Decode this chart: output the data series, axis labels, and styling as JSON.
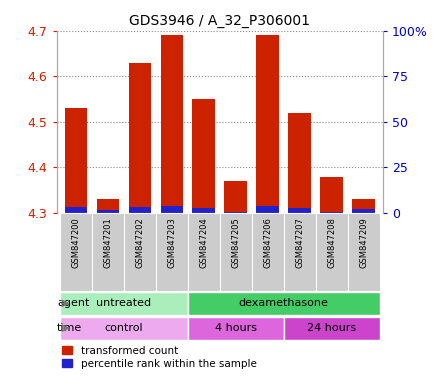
{
  "title": "GDS3946 / A_32_P306001",
  "samples": [
    "GSM847200",
    "GSM847201",
    "GSM847202",
    "GSM847203",
    "GSM847204",
    "GSM847205",
    "GSM847206",
    "GSM847207",
    "GSM847208",
    "GSM847209"
  ],
  "bar_tops": [
    4.53,
    4.33,
    4.63,
    4.69,
    4.55,
    4.37,
    4.69,
    4.52,
    4.38,
    4.33
  ],
  "bar_bottoms": [
    4.3,
    4.3,
    4.3,
    4.3,
    4.3,
    4.3,
    4.3,
    4.3,
    4.3,
    4.3
  ],
  "blue_tops": [
    4.312,
    4.3065,
    4.314,
    4.3155,
    4.3115,
    4.303,
    4.3155,
    4.3115,
    4.303,
    4.308
  ],
  "blue_bottoms": [
    4.3,
    4.3,
    4.3,
    4.3,
    4.3,
    4.3,
    4.3,
    4.3,
    4.3,
    4.3
  ],
  "ylim_left": [
    4.3,
    4.7
  ],
  "ylim_right": [
    0,
    100
  ],
  "yticks_left": [
    4.3,
    4.4,
    4.5,
    4.6,
    4.7
  ],
  "yticks_right": [
    0,
    25,
    50,
    75,
    100
  ],
  "ytick_labels_right": [
    "0",
    "25",
    "50",
    "75",
    "100%"
  ],
  "bar_color": "#cc2200",
  "blue_color": "#2222cc",
  "agent_groups": [
    {
      "label": "untreated",
      "start": 0,
      "end": 4,
      "color": "#aaeebb"
    },
    {
      "label": "dexamethasone",
      "start": 4,
      "end": 10,
      "color": "#44cc66"
    }
  ],
  "time_groups": [
    {
      "label": "control",
      "start": 0,
      "end": 4,
      "color": "#eeaaee"
    },
    {
      "label": "4 hours",
      "start": 4,
      "end": 7,
      "color": "#dd66dd"
    },
    {
      "label": "24 hours",
      "start": 7,
      "end": 10,
      "color": "#cc44cc"
    }
  ],
  "legend_red_label": "transformed count",
  "legend_blue_label": "percentile rank within the sample",
  "agent_label": "agent",
  "time_label": "time",
  "bar_width": 0.7,
  "tick_label_color_left": "#cc2200",
  "tick_label_color_right": "#0000cc",
  "xticklabel_bg": "#cccccc",
  "plot_bg": "#ffffff",
  "spine_color": "#aaaaaa"
}
